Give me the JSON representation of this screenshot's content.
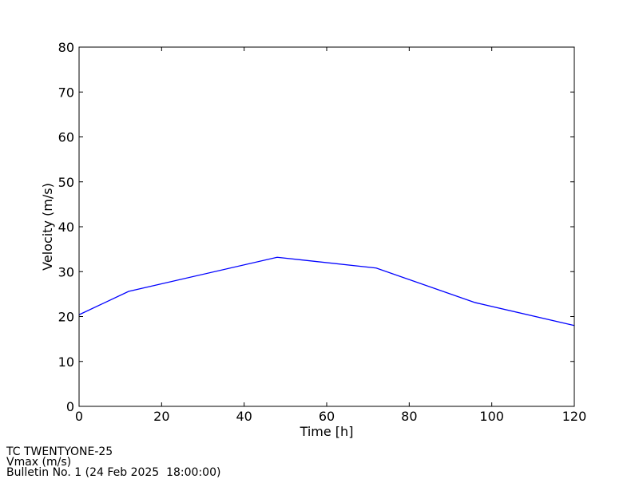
{
  "chart_data": {
    "type": "line",
    "xlabel": "Time [h]",
    "ylabel": "Velocity (m/s)",
    "x": [
      0,
      12,
      48,
      72,
      96,
      120
    ],
    "series": [
      {
        "color": "#0000ff",
        "values": [
          20.4,
          25.6,
          33.2,
          30.8,
          23.1,
          18.0
        ]
      }
    ],
    "xlim": [
      0,
      120
    ],
    "xticks": [
      0,
      20,
      40,
      60,
      80,
      100,
      120
    ],
    "ylim": [
      0,
      80
    ],
    "yticks": [
      0,
      10,
      20,
      30,
      40,
      50,
      60,
      70,
      80
    ],
    "grid": false,
    "annotations": [
      "TC TWENTYONE-25",
      "Vmax (m/s)",
      "Bulletin No. 1 (24 Feb 2025  18:00:00)"
    ]
  }
}
